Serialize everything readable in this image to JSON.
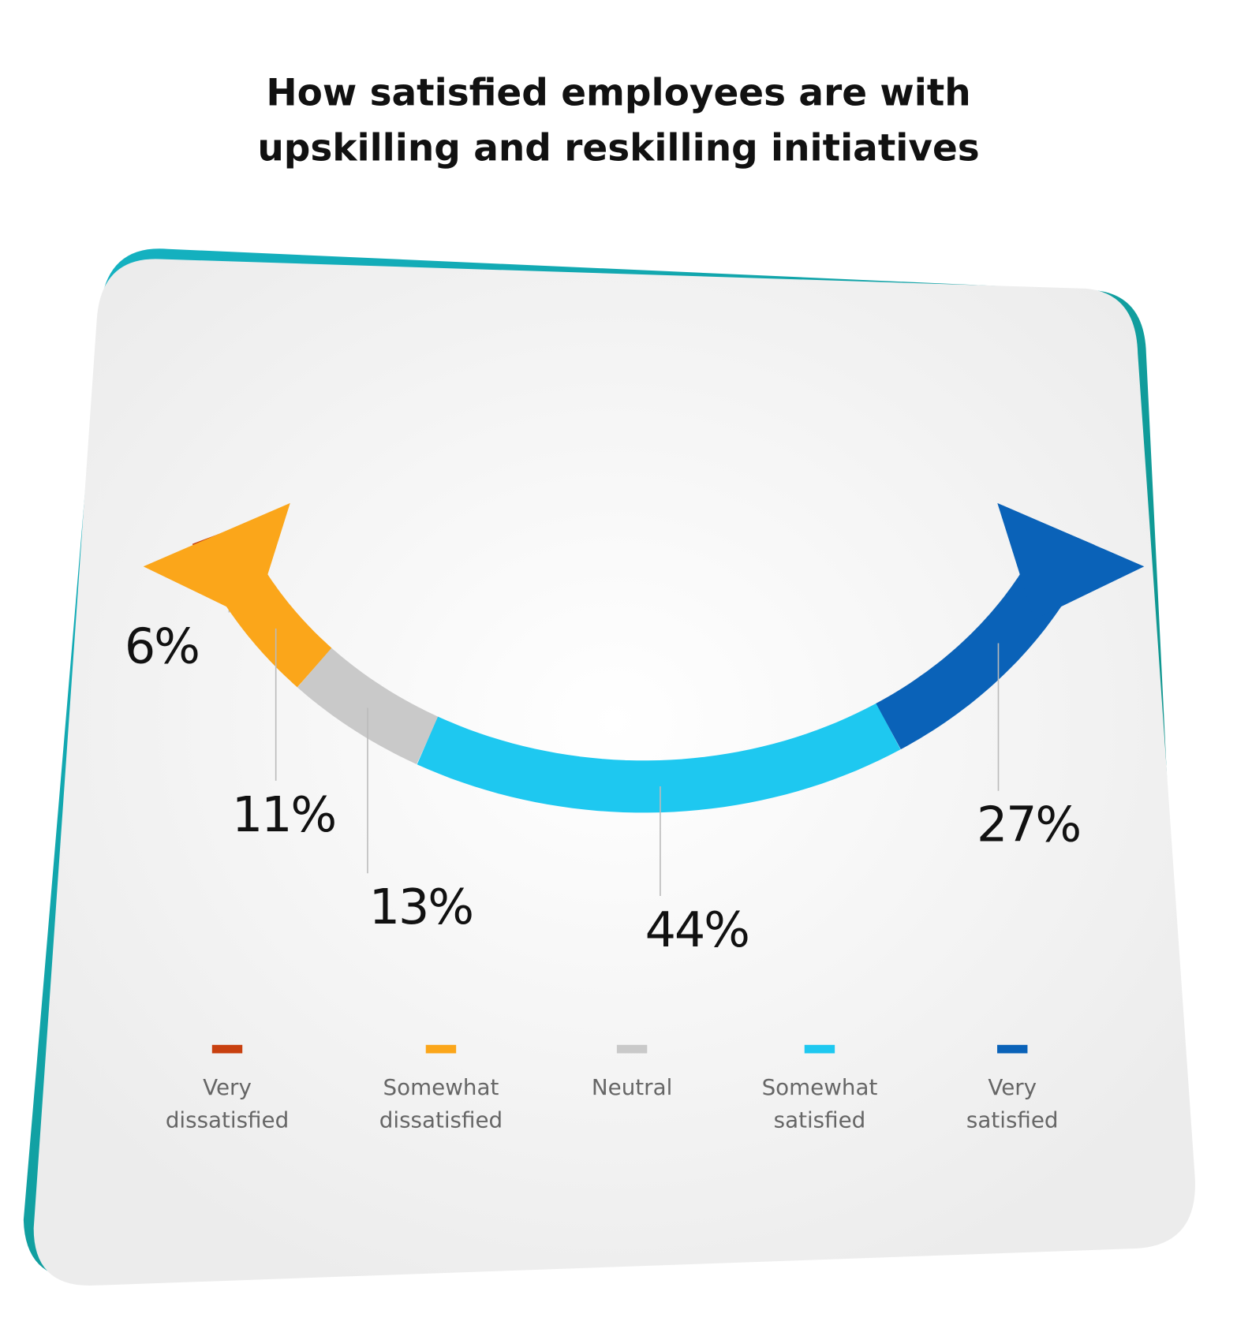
{
  "chart_data": {
    "type": "arc",
    "title": "How satisfied employees are with upskilling and reskilling initiatives",
    "categories": [
      "Very dissatisfied",
      "Somewhat dissatisfied",
      "Neutral",
      "Somewhat satisfied",
      "Very satisfied"
    ],
    "values": [
      6,
      11,
      13,
      44,
      27
    ],
    "value_labels": [
      "6%",
      "11%",
      "13%",
      "44%",
      "27%"
    ],
    "colors": [
      "#c8400f",
      "#fba61a",
      "#c9c9c9",
      "#1ec8f0",
      "#0a62b8"
    ],
    "legend": "bottom"
  }
}
